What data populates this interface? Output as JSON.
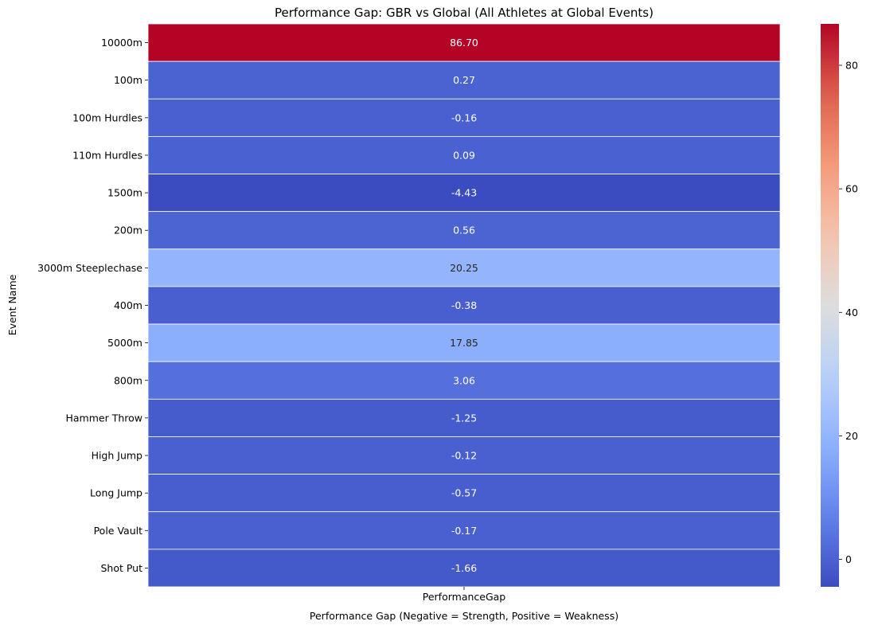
{
  "chart_data": {
    "type": "heatmap",
    "title": "Performance Gap: GBR vs Global (All Athletes at Global Events)",
    "xlabel": "Performance Gap (Negative = Strength, Positive = Weakness)",
    "ylabel": "Event Name",
    "columns": [
      "PerformanceGap"
    ],
    "rows": [
      "10000m",
      "100m",
      "100m Hurdles",
      "110m Hurdles",
      "1500m",
      "200m",
      "3000m Steeplechase",
      "400m",
      "5000m",
      "800m",
      "Hammer Throw",
      "High Jump",
      "Long Jump",
      "Pole Vault",
      "Shot Put"
    ],
    "values": [
      86.7,
      0.27,
      -0.16,
      0.09,
      -4.43,
      0.56,
      20.25,
      -0.38,
      17.85,
      3.06,
      -1.25,
      -0.12,
      -0.57,
      -0.17,
      -1.66
    ],
    "value_labels": [
      "86.70",
      "0.27",
      "-0.16",
      "0.09",
      "-4.43",
      "0.56",
      "20.25",
      "-0.38",
      "17.85",
      "3.06",
      "-1.25",
      "-0.12",
      "-0.57",
      "-0.17",
      "-1.66"
    ],
    "colormap": "coolwarm",
    "vmin": -4.43,
    "vmax": 86.7,
    "colorbar": {
      "ticks": [
        0,
        20,
        40,
        60,
        80
      ],
      "tick_labels": [
        "0",
        "20",
        "40",
        "60",
        "80"
      ]
    },
    "cell_separator_color": "#ffffff"
  }
}
